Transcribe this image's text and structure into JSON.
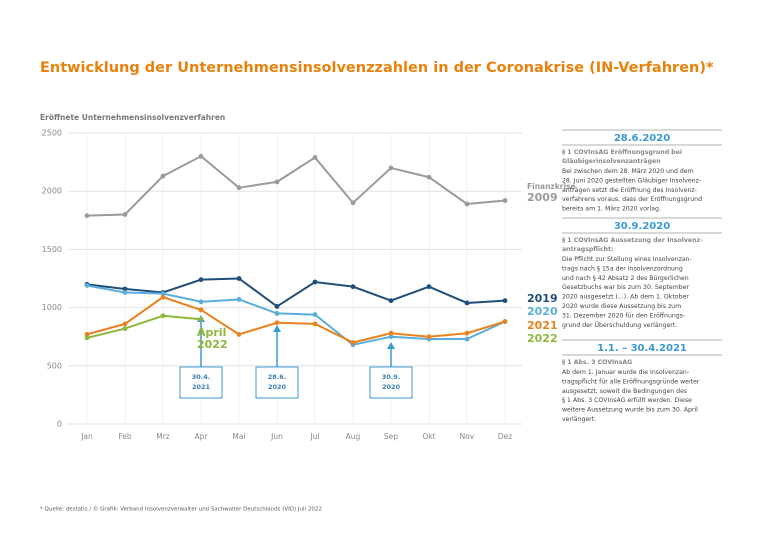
{
  "chart_data": {
    "type": "line",
    "title": "Entwicklung der Unternehmensinsolvenzzahlen in der Coronakrise (IN-Verfahren)*",
    "y_label": "Eröffnete Unternehmensinsolvenzverfahren",
    "categories": [
      "Jan",
      "Feb",
      "Mrz",
      "Apr",
      "Mai",
      "Jun",
      "Jul",
      "Aug",
      "Sep",
      "Okt",
      "Nov",
      "Dez"
    ],
    "series": [
      {
        "name": "2009",
        "tag": "Finanzkrise",
        "color": "#9a9a9a",
        "values": [
          1790,
          1800,
          2130,
          2300,
          2030,
          2080,
          2290,
          1900,
          2200,
          2120,
          1890,
          1920
        ]
      },
      {
        "name": "2019",
        "color": "#1f4e79",
        "values": [
          1200,
          1160,
          1130,
          1240,
          1250,
          1010,
          1220,
          1180,
          1060,
          1180,
          1040,
          1060
        ]
      },
      {
        "name": "2020",
        "color": "#5aaedb",
        "values": [
          1190,
          1130,
          1120,
          1050,
          1070,
          950,
          940,
          680,
          750,
          730,
          730,
          880
        ]
      },
      {
        "name": "2021",
        "color": "#e8821e",
        "values": [
          770,
          860,
          1090,
          980,
          770,
          870,
          860,
          700,
          780,
          750,
          780,
          880
        ]
      },
      {
        "name": "2022",
        "color": "#8cb83a",
        "values": [
          740,
          820,
          930,
          900,
          null,
          null,
          null,
          null,
          null,
          null,
          null,
          null
        ]
      }
    ],
    "series_annotation": [
      "April",
      "2022"
    ],
    "ylim": [
      0,
      2500
    ],
    "yticks": [
      0,
      500,
      1000,
      1500,
      2000,
      2500
    ],
    "grid": true,
    "annotations": [
      [
        "30.4.",
        "2021"
      ],
      [
        "28.6.",
        "2020"
      ],
      [
        "30.9.",
        "2020"
      ]
    ]
  },
  "sidebar": {
    "sections": [
      {
        "heading": "28.6.2020",
        "sub": [
          "§ 1 COVInsAG Eröffnungsgrund bei",
          "Gläubigerinsolvenzanträgen"
        ],
        "body": [
          "Bei zwischen dem 28. März 2020 und dem",
          "28. Juni 2020 gestellten Gläubiger Insolvenz-",
          "anträgen setzt die Eröffnung des Insolvenz-",
          "verfahrens voraus, dass der Eröffnungsgrund",
          "bereits am 1. März 2020 vorlag."
        ]
      },
      {
        "heading": "30.9.2020",
        "sub": [
          "§ 1 COVInsAG Aussetzung der Insolvenz-",
          "antragspflicht:"
        ],
        "body": [
          "Die Pflicht zur Stellung eines Insolvenzan-",
          "trags nach § 15a der Insolvenzordnung",
          "und nach § 42 Absatz 2 des Bürgerlichen",
          "Gesetzbuchs war bis zum 30. September",
          "2020 ausgesetzt (...). Ab dem 1. Oktober",
          "2020 wurde diese Aussetzung bis zum",
          "31. Dezember 2020 für den Eröffnungs-",
          "grund der Überschuldung verlängert."
        ]
      },
      {
        "heading": "1.1. – 30.4.2021",
        "sub": [
          "§ 1 Abs. 3 COVInsAG"
        ],
        "body": [
          "Ab dem 1. Januar wurde die Insolvenzan-",
          "tragspflicht für alle Eröffnungsgründe weiter",
          "ausgesetzt, soweit die Bedingungen des",
          "§ 1 Abs. 3 COVInsAG erfüllt werden. Diese",
          "weitere Aussetzung wurde bis zum 30. April",
          "verlängert."
        ]
      }
    ]
  },
  "footnote": "* Quelle: destatis / © Grafik: Verband Insolvenzverwalter und Sachwalter Deutschlands (VID) Juli 2022"
}
